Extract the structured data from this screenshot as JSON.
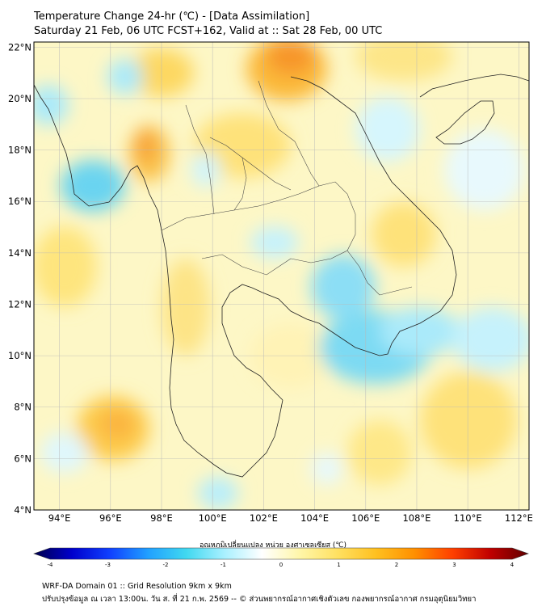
{
  "title": {
    "line1": "Temperature Change 24-hr (℃) - [Data Assimilation]",
    "line2": "Saturday 21 Feb, 06 UTC FCST+162, Valid at :: Sat 28 Feb, 00 UTC"
  },
  "map": {
    "lat_labels": [
      "22°N",
      "20°N",
      "18°N",
      "16°N",
      "14°N",
      "12°N",
      "10°N",
      "8°N",
      "6°N",
      "4°N"
    ],
    "lon_labels": [
      "94°E",
      "96°E",
      "98°E",
      "100°E",
      "102°E",
      "104°E",
      "106°E",
      "108°E",
      "110°E",
      "112°E"
    ],
    "lat_range": [
      4,
      22.2
    ],
    "lon_range": [
      93,
      112.4
    ]
  },
  "colorbar": {
    "title": "อุณหภูมิเปลี่ยนแปลง หน่วย องศาเซลเซียส (℃)",
    "ticks": [
      "-4",
      "-3",
      "-2",
      "-1",
      "0",
      "1",
      "2",
      "3",
      "4"
    ],
    "range": [
      -4,
      4
    ],
    "colors": [
      "#00004c",
      "#0000cc",
      "#1040ff",
      "#20a0ff",
      "#40d8f0",
      "#a8f0ff",
      "#ffffff",
      "#fff6a8",
      "#ffe060",
      "#ffc020",
      "#ff9000",
      "#ff4000",
      "#c00000",
      "#600000"
    ]
  },
  "footer": {
    "line1": "WRF-DA Domain 01 :: Grid Resolution 9km x 9km",
    "line2": "ปรับปรุงข้อมูล ณ เวลา 13:00น. วัน ส. ที่ 21 ก.พ. 2569 -- © ส่วนพยากรณ์อากาศเชิงตัวเลข กองพยากรณ์อากาศ กรมอุตุนิยมวิทยา"
  }
}
